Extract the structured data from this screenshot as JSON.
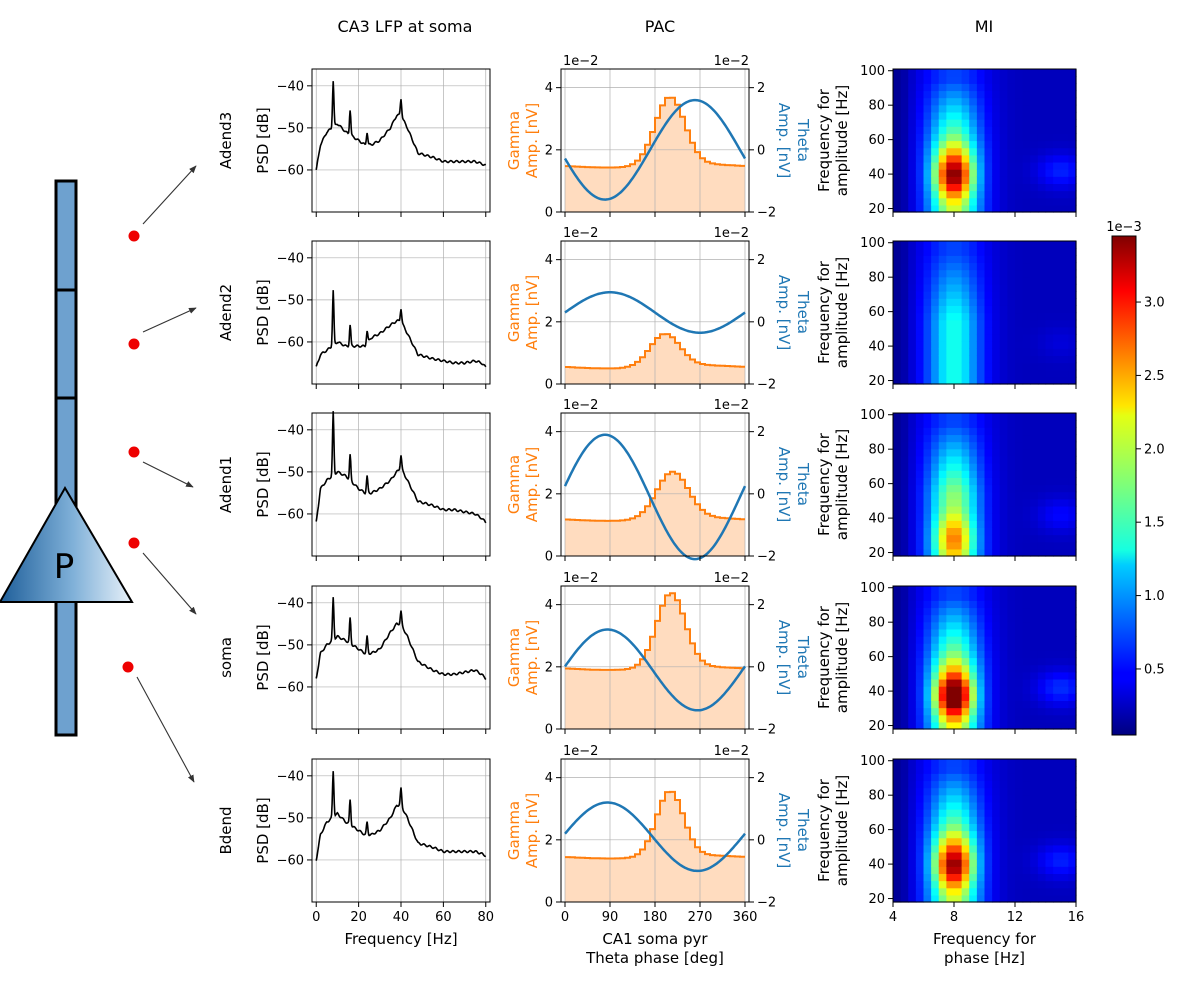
{
  "titles": {
    "col1": "CA3 LFP at soma",
    "col2": "PAC",
    "col3": "MI"
  },
  "neuron": {
    "label": "P"
  },
  "rows": [
    {
      "label": "Adend3"
    },
    {
      "label": "Adend2"
    },
    {
      "label": "Adend1"
    },
    {
      "label": "soma"
    },
    {
      "label": "Bdend"
    }
  ],
  "colors": {
    "psd": "#000000",
    "gamma": "#ff7f0e",
    "gamma_fill": "#ffdcbf",
    "theta": "#1f77b4",
    "electrode": "#ee0000",
    "neuron_fill": "#5b93c7",
    "grid": "#b0b0b0"
  },
  "chart_data": [
    {
      "id": "psd",
      "type": "line",
      "xlabel": "Frequency [Hz]",
      "ylabel": "PSD [dB]",
      "xlim": [
        -2,
        82
      ],
      "ylim": [
        -70,
        -36
      ],
      "xticks": [
        0,
        20,
        40,
        60,
        80
      ],
      "yticks": [
        -40,
        -50,
        -60
      ],
      "grid": true,
      "series": [
        {
          "row": "Adend3",
          "peaks": [
            [
              8,
              11
            ],
            [
              16,
              6
            ],
            [
              24,
              3
            ],
            [
              40,
              4
            ]
          ],
          "points": [
            [
              0,
              -60
            ],
            [
              2,
              -54
            ],
            [
              5,
              -51
            ],
            [
              10,
              -49
            ],
            [
              14,
              -51
            ],
            [
              20,
              -53
            ],
            [
              23,
              -54
            ],
            [
              26,
              -54
            ],
            [
              30,
              -53
            ],
            [
              35,
              -50
            ],
            [
              38,
              -47
            ],
            [
              40,
              -47
            ],
            [
              43,
              -50
            ],
            [
              48,
              -56
            ],
            [
              55,
              -57
            ],
            [
              60,
              -58
            ],
            [
              65,
              -58
            ],
            [
              70,
              -58
            ],
            [
              75,
              -58
            ],
            [
              78,
              -58.5
            ],
            [
              80,
              -59
            ]
          ]
        },
        {
          "row": "Adend2",
          "peaks": [
            [
              8,
              13
            ],
            [
              16,
              5
            ],
            [
              24,
              3
            ],
            [
              40,
              3
            ]
          ],
          "points": [
            [
              0,
              -66
            ],
            [
              2,
              -63
            ],
            [
              5,
              -62
            ],
            [
              10,
              -60
            ],
            [
              14,
              -61
            ],
            [
              20,
              -61
            ],
            [
              23,
              -61
            ],
            [
              26,
              -59
            ],
            [
              30,
              -58
            ],
            [
              35,
              -56
            ],
            [
              38,
              -55
            ],
            [
              40,
              -55
            ],
            [
              43,
              -58
            ],
            [
              48,
              -63
            ],
            [
              55,
              -64
            ],
            [
              60,
              -64.5
            ],
            [
              65,
              -65
            ],
            [
              70,
              -65
            ],
            [
              75,
              -64.5
            ],
            [
              78,
              -65
            ],
            [
              80,
              -66
            ]
          ]
        },
        {
          "row": "Adend1",
          "peaks": [
            [
              8,
              15
            ],
            [
              16,
              6
            ],
            [
              24,
              4
            ],
            [
              40,
              3
            ]
          ],
          "points": [
            [
              0,
              -62
            ],
            [
              2,
              -54
            ],
            [
              5,
              -52
            ],
            [
              10,
              -50
            ],
            [
              14,
              -51
            ],
            [
              20,
              -54
            ],
            [
              23,
              -55
            ],
            [
              26,
              -55
            ],
            [
              30,
              -54
            ],
            [
              35,
              -52
            ],
            [
              38,
              -50
            ],
            [
              40,
              -49
            ],
            [
              43,
              -52
            ],
            [
              48,
              -57
            ],
            [
              55,
              -58
            ],
            [
              60,
              -59
            ],
            [
              65,
              -59
            ],
            [
              70,
              -59.5
            ],
            [
              75,
              -60
            ],
            [
              78,
              -61
            ],
            [
              80,
              -62
            ]
          ]
        },
        {
          "row": "soma",
          "peaks": [
            [
              8,
              10
            ],
            [
              16,
              6
            ],
            [
              24,
              4
            ],
            [
              40,
              3
            ]
          ],
          "points": [
            [
              0,
              -58
            ],
            [
              2,
              -52
            ],
            [
              5,
              -50
            ],
            [
              10,
              -48
            ],
            [
              14,
              -49
            ],
            [
              20,
              -51
            ],
            [
              23,
              -52
            ],
            [
              26,
              -52
            ],
            [
              30,
              -51
            ],
            [
              35,
              -47
            ],
            [
              38,
              -45
            ],
            [
              40,
              -45
            ],
            [
              43,
              -48
            ],
            [
              48,
              -54
            ],
            [
              55,
              -56
            ],
            [
              60,
              -57
            ],
            [
              65,
              -57
            ],
            [
              70,
              -56.5
            ],
            [
              75,
              -56
            ],
            [
              78,
              -57
            ],
            [
              80,
              -58
            ]
          ]
        },
        {
          "row": "Bdend",
          "peaks": [
            [
              8,
              11
            ],
            [
              16,
              6
            ],
            [
              24,
              3
            ],
            [
              40,
              4
            ]
          ],
          "points": [
            [
              0,
              -60
            ],
            [
              2,
              -54
            ],
            [
              5,
              -51
            ],
            [
              10,
              -49
            ],
            [
              14,
              -51
            ],
            [
              20,
              -53
            ],
            [
              23,
              -54
            ],
            [
              26,
              -54
            ],
            [
              30,
              -53
            ],
            [
              35,
              -50
            ],
            [
              38,
              -47
            ],
            [
              40,
              -47
            ],
            [
              43,
              -50
            ],
            [
              48,
              -56
            ],
            [
              55,
              -57
            ],
            [
              60,
              -58
            ],
            [
              65,
              -58
            ],
            [
              70,
              -58
            ],
            [
              75,
              -58
            ],
            [
              78,
              -58.5
            ],
            [
              80,
              -59
            ]
          ]
        }
      ]
    },
    {
      "id": "pac",
      "type": "bar",
      "xlabel": "CA1 soma pyr",
      "xlabel2": "Theta phase [deg]",
      "ylabel_left": "Gamma",
      "ylabel_left2": "Amp. [nV]",
      "ylabel_right": "Theta",
      "ylabel_right2": "Amp. [nV]",
      "left_scale": "1e−2",
      "right_scale": "1e−2",
      "xlim": [
        -8,
        368
      ],
      "ylim_left": [
        0,
        4.6
      ],
      "ylim_right": [
        -2,
        2.6
      ],
      "xticks": [
        0,
        90,
        180,
        270,
        360
      ],
      "yticks_left": [
        0,
        2,
        4
      ],
      "yticks_right": [
        -2,
        0,
        2
      ],
      "grid": true,
      "series": [
        {
          "row": "Adend3",
          "gamma_base": 1.48,
          "gamma_amp": 2.2,
          "gamma_peak_deg": 210,
          "gamma_width_deg": 42,
          "theta_amp": 1.6,
          "theta_phase_deg": 260,
          "theta_offset": 0.0
        },
        {
          "row": "Adend2",
          "gamma_base": 0.55,
          "gamma_amp": 1.05,
          "gamma_peak_deg": 200,
          "gamma_width_deg": 42,
          "theta_amp": 0.65,
          "theta_phase_deg": 90,
          "theta_offset": 0.3
        },
        {
          "row": "Adend1",
          "gamma_base": 1.18,
          "gamma_amp": 1.5,
          "gamma_peak_deg": 215,
          "gamma_width_deg": 45,
          "theta_amp": 2.0,
          "theta_phase_deg": 80,
          "theta_offset": -0.1
        },
        {
          "row": "soma",
          "gamma_base": 1.95,
          "gamma_amp": 2.4,
          "gamma_peak_deg": 212,
          "gamma_width_deg": 40,
          "theta_amp": 1.3,
          "theta_phase_deg": 85,
          "theta_offset": -0.1
        },
        {
          "row": "Bdend",
          "gamma_base": 1.45,
          "gamma_amp": 2.1,
          "gamma_peak_deg": 210,
          "gamma_width_deg": 38,
          "theta_amp": 1.1,
          "theta_phase_deg": 85,
          "theta_offset": 0.1
        }
      ]
    },
    {
      "id": "mi",
      "type": "heatmap",
      "xlabel": "Frequency for",
      "xlabel2": "phase [Hz]",
      "ylabel": "Frequency for",
      "ylabel2": "amplitude [Hz]",
      "xlim": [
        4,
        16
      ],
      "ylim": [
        18,
        101
      ],
      "xticks": [
        4,
        8,
        12,
        16
      ],
      "yticks": [
        20,
        40,
        60,
        80,
        100
      ],
      "series": [
        {
          "row": "Adend3",
          "peak": 3.05,
          "band": 1.2,
          "cx": 8.0,
          "cy": 40
        },
        {
          "row": "Adend2",
          "peak": 0.95,
          "band": 0.7,
          "cx": 8.0,
          "cy": 40
        },
        {
          "row": "Adend1",
          "peak": 2.2,
          "band": 1.1,
          "cx": 8.0,
          "cy": 28
        },
        {
          "row": "soma",
          "peak": 3.45,
          "band": 1.25,
          "cx": 8.0,
          "cy": 38
        },
        {
          "row": "Bdend",
          "peak": 3.0,
          "band": 1.2,
          "cx": 8.0,
          "cy": 40
        }
      ]
    },
    {
      "id": "colorbar",
      "type": "colorbar",
      "scale_label": "1e−3",
      "vmin": 0.05,
      "vmax": 3.45,
      "ticks": [
        0.5,
        1.0,
        1.5,
        2.0,
        2.5,
        3.0
      ],
      "tick_labels": [
        "0.5",
        "1.0",
        "1.5",
        "2.0",
        "2.5",
        "3.0"
      ]
    }
  ]
}
